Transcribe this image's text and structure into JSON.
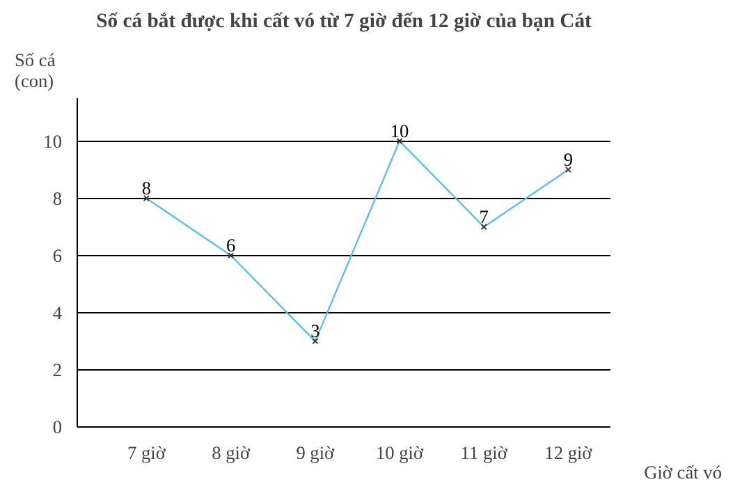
{
  "chart_data": {
    "type": "line",
    "title": "Số cá bắt được khi cất vó từ 7 giờ đến 12 giờ của bạn Cát",
    "xlabel": "Giờ cất vó",
    "ylabel": "Số cá\n(con)",
    "categories": [
      "7 giờ",
      "8 giờ",
      "9 giờ",
      "10 giờ",
      "11 giờ",
      "12 giờ"
    ],
    "series": [
      {
        "color": "#5bc0e8",
        "values": [
          8,
          6,
          3,
          10,
          7,
          9
        ]
      }
    ],
    "ylim": [
      0,
      11.5
    ],
    "yticks": [
      0,
      2,
      4,
      6,
      8,
      10
    ],
    "grid": "y",
    "marker": "cross",
    "line_style": "solid",
    "data_labels": true
  }
}
